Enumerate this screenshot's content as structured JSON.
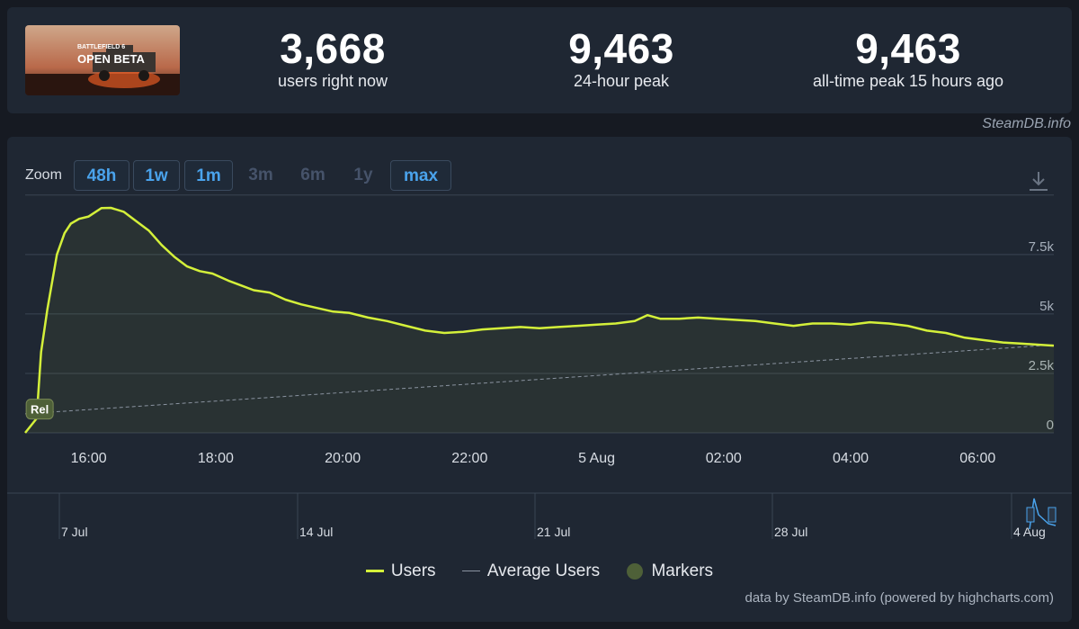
{
  "header": {
    "thumbnail": {
      "line1": "BATTLEFIELD 6",
      "line2": "OPEN BETA"
    },
    "stats": [
      {
        "value": "3,668",
        "label": "users right now"
      },
      {
        "value": "9,463",
        "label": "24-hour peak"
      },
      {
        "value": "9,463",
        "label": "all-time peak 15 hours ago"
      }
    ],
    "credit": "SteamDB.info"
  },
  "zoom": {
    "label": "Zoom",
    "buttons": [
      {
        "label": "48h",
        "enabled": true
      },
      {
        "label": "1w",
        "enabled": true
      },
      {
        "label": "1m",
        "enabled": true
      },
      {
        "label": "3m",
        "enabled": false
      },
      {
        "label": "6m",
        "enabled": false
      },
      {
        "label": "1y",
        "enabled": false
      },
      {
        "label": "max",
        "enabled": true
      }
    ]
  },
  "chart_data": {
    "type": "line",
    "y_ticks": [
      "0",
      "2.5k",
      "5k",
      "7.5k"
    ],
    "x_ticks": [
      "16:00",
      "18:00",
      "20:00",
      "22:00",
      "5 Aug",
      "02:00",
      "04:00",
      "06:00"
    ],
    "ylim": [
      0,
      9500
    ],
    "x_unit": "hours after 15:00",
    "xlim": [
      0,
      16.2
    ],
    "series": [
      {
        "name": "Users",
        "color": "#d4f03a",
        "x": [
          0.0,
          0.18,
          0.25,
          0.35,
          0.5,
          0.62,
          0.72,
          0.85,
          1.0,
          1.2,
          1.35,
          1.55,
          1.75,
          1.95,
          2.15,
          2.35,
          2.55,
          2.75,
          2.95,
          3.2,
          3.4,
          3.6,
          3.85,
          4.1,
          4.35,
          4.6,
          4.85,
          5.1,
          5.4,
          5.7,
          6.0,
          6.3,
          6.6,
          6.9,
          7.2,
          7.5,
          7.8,
          8.1,
          8.4,
          8.7,
          9.0,
          9.3,
          9.6,
          9.8,
          10.0,
          10.3,
          10.6,
          10.9,
          11.2,
          11.5,
          11.8,
          12.1,
          12.4,
          12.7,
          13.0,
          13.3,
          13.6,
          13.9,
          14.2,
          14.5,
          14.8,
          15.1,
          15.4,
          15.7,
          16.0,
          16.2
        ],
        "y": [
          0,
          600,
          3400,
          5200,
          7500,
          8400,
          8800,
          9000,
          9100,
          9450,
          9463,
          9300,
          8900,
          8500,
          7900,
          7400,
          7000,
          6800,
          6700,
          6400,
          6200,
          6000,
          5900,
          5600,
          5400,
          5250,
          5100,
          5050,
          4850,
          4700,
          4500,
          4300,
          4200,
          4250,
          4350,
          4400,
          4450,
          4400,
          4450,
          4500,
          4550,
          4600,
          4700,
          4950,
          4800,
          4800,
          4850,
          4800,
          4750,
          4700,
          4600,
          4500,
          4600,
          4600,
          4550,
          4650,
          4600,
          4500,
          4300,
          4200,
          4000,
          3900,
          3800,
          3750,
          3700,
          3668
        ]
      },
      {
        "name": "Average Users",
        "color": "#8a93a0",
        "x": [
          0.0,
          16.2
        ],
        "y": [
          800,
          3700
        ]
      }
    ],
    "markers": [
      {
        "label": "Rel",
        "x": 0.2,
        "y": 1000
      }
    ],
    "navigator": {
      "labels": [
        "7 Jul",
        "14 Jul",
        "21 Jul",
        "28 Jul",
        "4 Aug"
      ]
    },
    "legend": [
      "Users",
      "Average Users",
      "Markers"
    ],
    "grid": true
  },
  "footer": {
    "credit": "data by SteamDB.info (powered by highcharts.com)"
  }
}
